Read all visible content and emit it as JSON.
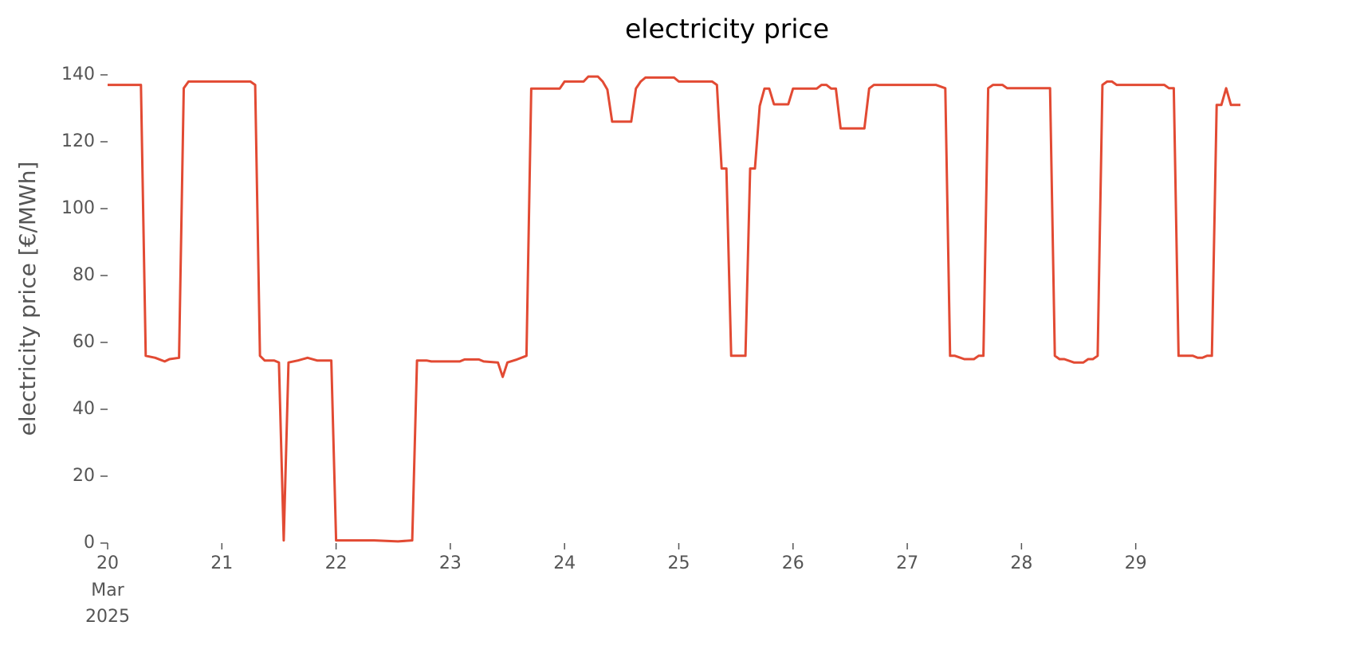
{
  "chart_data": {
    "type": "line",
    "title": "electricity price",
    "y_label": "electricity price [€/MWh]",
    "x": [
      "2025-03-20T00:00",
      "2025-03-20T07:00",
      "2025-03-20T08:00",
      "2025-03-20T10:00",
      "2025-03-20T12:00",
      "2025-03-20T13:00",
      "2025-03-20T15:00",
      "2025-03-20T16:00",
      "2025-03-20T17:00",
      "2025-03-21T06:00",
      "2025-03-21T07:00",
      "2025-03-21T08:00",
      "2025-03-21T09:00",
      "2025-03-21T11:00",
      "2025-03-21T12:00",
      "2025-03-21T13:00",
      "2025-03-21T14:00",
      "2025-03-21T16:00",
      "2025-03-21T18:00",
      "2025-03-21T20:00",
      "2025-03-21T23:00",
      "2025-03-22T00:00",
      "2025-03-22T08:00",
      "2025-03-22T13:00",
      "2025-03-22T16:00",
      "2025-03-22T17:00",
      "2025-03-22T19:00",
      "2025-03-22T20:00",
      "2025-03-23T02:00",
      "2025-03-23T03:00",
      "2025-03-23T06:00",
      "2025-03-23T07:00",
      "2025-03-23T10:00",
      "2025-03-23T11:00",
      "2025-03-23T12:00",
      "2025-03-23T14:00",
      "2025-03-23T16:00",
      "2025-03-23T17:00",
      "2025-03-23T23:00",
      "2025-03-24T00:00",
      "2025-03-24T04:00",
      "2025-03-24T05:00",
      "2025-03-24T07:00",
      "2025-03-24T08:00",
      "2025-03-24T09:00",
      "2025-03-24T10:00",
      "2025-03-24T14:00",
      "2025-03-24T15:00",
      "2025-03-24T16:00",
      "2025-03-24T17:00",
      "2025-03-24T23:00",
      "2025-03-25T00:00",
      "2025-03-25T07:00",
      "2025-03-25T08:00",
      "2025-03-25T09:00",
      "2025-03-25T10:00",
      "2025-03-25T11:00",
      "2025-03-25T14:00",
      "2025-03-25T15:00",
      "2025-03-25T16:00",
      "2025-03-25T17:00",
      "2025-03-25T18:00",
      "2025-03-25T19:00",
      "2025-03-25T20:00",
      "2025-03-25T23:00",
      "2025-03-26T00:00",
      "2025-03-26T05:00",
      "2025-03-26T06:00",
      "2025-03-26T07:00",
      "2025-03-26T08:00",
      "2025-03-26T09:00",
      "2025-03-26T10:00",
      "2025-03-26T15:00",
      "2025-03-26T16:00",
      "2025-03-26T17:00",
      "2025-03-27T06:00",
      "2025-03-27T08:00",
      "2025-03-27T09:00",
      "2025-03-27T10:00",
      "2025-03-27T12:00",
      "2025-03-27T14:00",
      "2025-03-27T15:00",
      "2025-03-27T16:00",
      "2025-03-27T17:00",
      "2025-03-27T18:00",
      "2025-03-27T20:00",
      "2025-03-27T21:00",
      "2025-03-28T06:00",
      "2025-03-28T07:00",
      "2025-03-28T08:00",
      "2025-03-28T09:00",
      "2025-03-28T11:00",
      "2025-03-28T13:00",
      "2025-03-28T14:00",
      "2025-03-28T15:00",
      "2025-03-28T16:00",
      "2025-03-28T17:00",
      "2025-03-28T18:00",
      "2025-03-28T19:00",
      "2025-03-28T20:00",
      "2025-03-29T06:00",
      "2025-03-29T07:00",
      "2025-03-29T08:00",
      "2025-03-29T09:00",
      "2025-03-29T12:00",
      "2025-03-29T13:00",
      "2025-03-29T14:00",
      "2025-03-29T15:00",
      "2025-03-29T16:00",
      "2025-03-29T17:00",
      "2025-03-29T18:00",
      "2025-03-29T19:00",
      "2025-03-29T20:00",
      "2025-03-29T22:00"
    ],
    "series": [
      {
        "name": "electricity price",
        "color": "#e24a33",
        "values": [
          137,
          137,
          56,
          55.4,
          54.3,
          55,
          55.4,
          136,
          138,
          138,
          137,
          56,
          54.6,
          54.6,
          54,
          0.8,
          54,
          54.6,
          55.4,
          54.6,
          54.6,
          0.8,
          0.8,
          0.5,
          0.8,
          54.6,
          54.6,
          54.3,
          54.3,
          54.9,
          54.9,
          54.3,
          54,
          49.7,
          54,
          54.9,
          56,
          135.9,
          135.9,
          138,
          138,
          139.5,
          139.5,
          138,
          135.6,
          126,
          126,
          135.9,
          138,
          139.2,
          139.2,
          138,
          138,
          137,
          112,
          112,
          56,
          56,
          112,
          112,
          130.7,
          135.9,
          135.9,
          131.2,
          131.2,
          135.9,
          135.9,
          137,
          137,
          135.9,
          135.9,
          124,
          124,
          135.9,
          137,
          137,
          136,
          56,
          56,
          55,
          55,
          56,
          56,
          136,
          137,
          137,
          136,
          136,
          56,
          55,
          55,
          54,
          54,
          55,
          55,
          56,
          137,
          138,
          138,
          137,
          137,
          136,
          136,
          56,
          56,
          55.4,
          55.4,
          56,
          56,
          131,
          131,
          136,
          131,
          131
        ]
      }
    ],
    "xlim": [
      "2025-03-20T00:00",
      "2025-03-29T23:00"
    ],
    "xticks": [
      {
        "value": "2025-03-20T00:00",
        "label": "20"
      },
      {
        "value": "2025-03-21T00:00",
        "label": "21"
      },
      {
        "value": "2025-03-22T00:00",
        "label": "22"
      },
      {
        "value": "2025-03-23T00:00",
        "label": "23"
      },
      {
        "value": "2025-03-24T00:00",
        "label": "24"
      },
      {
        "value": "2025-03-25T00:00",
        "label": "25"
      },
      {
        "value": "2025-03-26T00:00",
        "label": "26"
      },
      {
        "value": "2025-03-27T00:00",
        "label": "27"
      },
      {
        "value": "2025-03-28T00:00",
        "label": "28"
      },
      {
        "value": "2025-03-29T00:00",
        "label": "29"
      }
    ],
    "x_month_label": "Mar",
    "x_year_label": "2025",
    "ylim": [
      0,
      140
    ],
    "yticks": [
      0,
      20,
      40,
      60,
      80,
      100,
      120,
      140
    ],
    "grid": false
  }
}
